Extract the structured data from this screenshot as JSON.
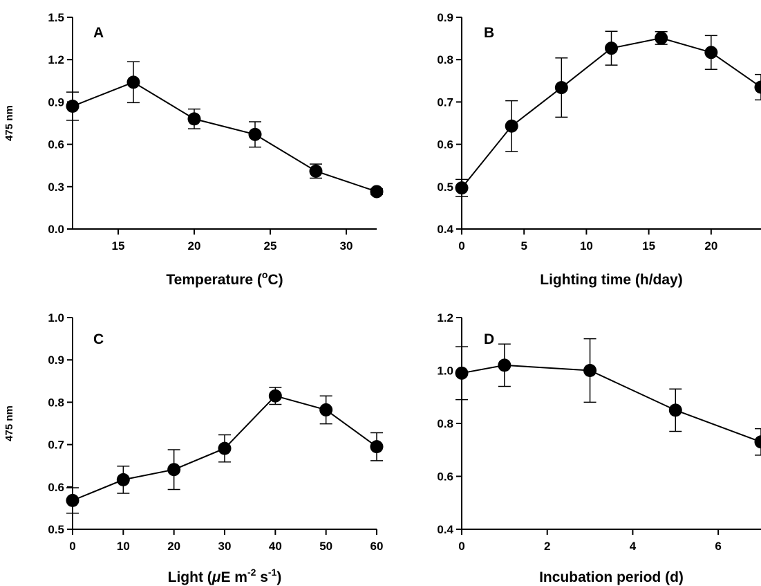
{
  "chart_data": [
    {
      "type": "line",
      "panel_label": "A",
      "xlabel_parts": [
        "Temperature (",
        "o",
        "C)"
      ],
      "ylabel": "475 nm",
      "xlim": [
        12,
        32
      ],
      "ylim": [
        0.0,
        1.5
      ],
      "xticks": [
        "15",
        "20",
        "25",
        "30"
      ],
      "yticks": [
        "0.0",
        "0.3",
        "0.6",
        "0.9",
        "1.2",
        "1.5"
      ],
      "x": [
        12,
        16,
        20,
        24,
        28,
        32
      ],
      "values": [
        0.87,
        1.04,
        0.78,
        0.67,
        0.41,
        0.265
      ],
      "error": [
        0.1,
        0.145,
        0.07,
        0.09,
        0.05,
        0.02
      ]
    },
    {
      "type": "line",
      "panel_label": "B",
      "xlabel_parts": [
        "Lighting time (h/day)"
      ],
      "ylabel": "",
      "xlim": [
        0,
        24
      ],
      "ylim": [
        0.4,
        0.9
      ],
      "xticks": [
        "0",
        "5",
        "10",
        "15",
        "20"
      ],
      "yticks": [
        "0.4",
        "0.5",
        "0.6",
        "0.7",
        "0.8",
        "0.9"
      ],
      "x": [
        0,
        4,
        8,
        12,
        16,
        20,
        24
      ],
      "values": [
        0.497,
        0.643,
        0.734,
        0.827,
        0.851,
        0.817,
        0.735
      ],
      "error": [
        0.02,
        0.06,
        0.07,
        0.04,
        0.015,
        0.04,
        0.03
      ]
    },
    {
      "type": "line",
      "panel_label": "C",
      "xlabel_parts": [
        "Light (",
        "μ",
        "E m",
        "-2",
        " s",
        "-1",
        ")"
      ],
      "ylabel": "475 nm",
      "xlim": [
        0,
        60
      ],
      "ylim": [
        0.5,
        1.0
      ],
      "xticks": [
        "0",
        "10",
        "20",
        "30",
        "40",
        "50",
        "60"
      ],
      "yticks": [
        "0.5",
        "0.6",
        "0.7",
        "0.8",
        "0.9",
        "1.0"
      ],
      "x": [
        0,
        10,
        20,
        30,
        40,
        50,
        60
      ],
      "values": [
        0.568,
        0.617,
        0.641,
        0.691,
        0.815,
        0.782,
        0.695
      ],
      "error": [
        0.03,
        0.032,
        0.047,
        0.032,
        0.02,
        0.033,
        0.033
      ]
    },
    {
      "type": "line",
      "panel_label": "D",
      "xlabel_parts": [
        "Incubation period (d)"
      ],
      "ylabel": "",
      "xlim": [
        0,
        7
      ],
      "ylim": [
        0.4,
        1.2
      ],
      "xticks": [
        "0",
        "2",
        "4",
        "6"
      ],
      "yticks": [
        "0.4",
        "0.6",
        "0.8",
        "1.0",
        "1.2"
      ],
      "x": [
        0,
        1,
        3,
        5,
        7
      ],
      "values": [
        0.99,
        1.02,
        1.0,
        0.85,
        0.73
      ],
      "error": [
        0.1,
        0.08,
        0.12,
        0.08,
        0.05
      ]
    }
  ]
}
